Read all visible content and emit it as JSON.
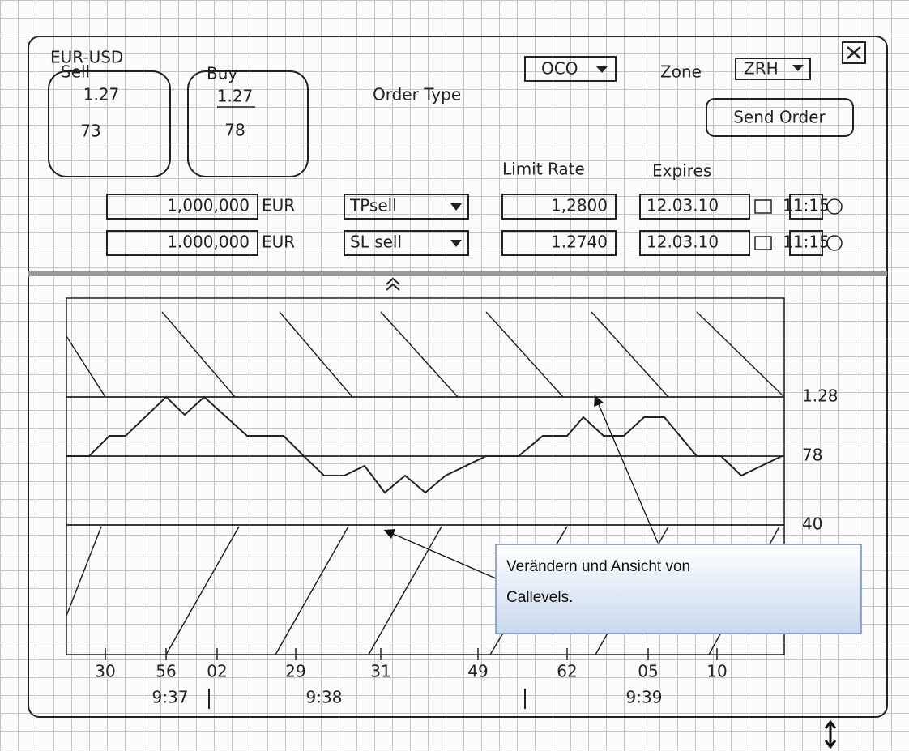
{
  "header": {
    "title": "EUR-USD",
    "order_type_label": "Order Type",
    "order_type": "OCO",
    "zone_label": "Zone",
    "zone": "ZRH",
    "send_order": "Send Order"
  },
  "quotes": {
    "sell": {
      "label": "Sell",
      "big": "1.27",
      "pips": "73"
    },
    "buy": {
      "label": "Buy",
      "big": "1.27",
      "pips": "78"
    }
  },
  "orders": {
    "columns": {
      "limit_rate": "Limit Rate",
      "expires": "Expires"
    },
    "rows": [
      {
        "amount": "1,000,000",
        "currency": "EUR",
        "kind": "TPsell",
        "rate": "1,2800",
        "date": "12.03.10",
        "time": "11:15"
      },
      {
        "amount": "1.000,000",
        "currency": "EUR",
        "kind": "SL sell",
        "rate": "1.2740",
        "date": "12.03.10",
        "time": "11:15"
      }
    ]
  },
  "chart": {
    "level_labels": [
      "1.28",
      "78",
      "40"
    ],
    "x_labels": [
      "30",
      "56",
      "02",
      "29",
      "31",
      "49",
      "62",
      "05",
      "10"
    ],
    "time_labels": [
      "9:37",
      "9:38",
      "9:39"
    ]
  },
  "callout": {
    "text_1": "Verändern und Ansicht von",
    "text_2": "Callevels."
  }
}
